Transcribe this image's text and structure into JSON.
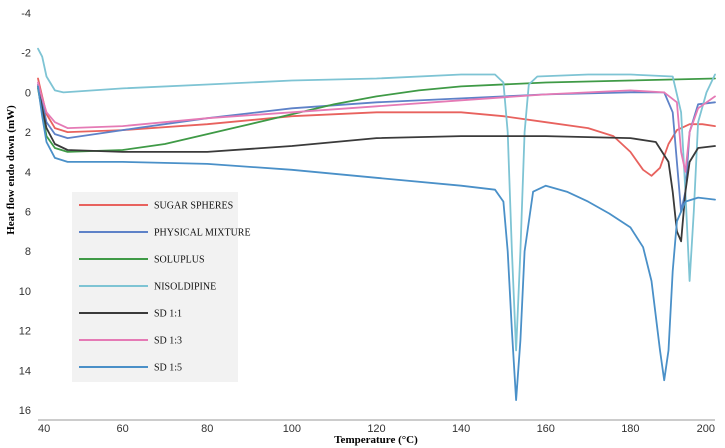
{
  "chart_data": {
    "type": "line",
    "xlabel": "Temperature (°C)",
    "ylabel": "Heat flow endo down (mW)",
    "xlim": [
      40,
      200
    ],
    "ylim": [
      -4,
      16
    ],
    "y_inverted": true,
    "xticks": [
      40,
      60,
      80,
      100,
      120,
      140,
      160,
      180,
      200
    ],
    "yticks": [
      -4,
      -2,
      0,
      2,
      4,
      6,
      8,
      10,
      12,
      14,
      16
    ],
    "grid": false,
    "legend_position": "bottom-left",
    "series": [
      {
        "name": "SUGAR SPHERES",
        "color": "#e8625e",
        "points": [
          [
            40,
            -0.7
          ],
          [
            41,
            0.2
          ],
          [
            42,
            1.1
          ],
          [
            44,
            1.8
          ],
          [
            47,
            2.0
          ],
          [
            60,
            1.9
          ],
          [
            80,
            1.6
          ],
          [
            100,
            1.2
          ],
          [
            120,
            1.0
          ],
          [
            140,
            1.0
          ],
          [
            150,
            1.2
          ],
          [
            160,
            1.5
          ],
          [
            170,
            1.8
          ],
          [
            176,
            2.2
          ],
          [
            180,
            3.0
          ],
          [
            183,
            3.9
          ],
          [
            185,
            4.2
          ],
          [
            187,
            3.8
          ],
          [
            189,
            2.6
          ],
          [
            191,
            1.9
          ],
          [
            194,
            1.6
          ],
          [
            197,
            1.6
          ],
          [
            200,
            1.7
          ]
        ]
      },
      {
        "name": "PHYSICAL MIXTURE",
        "color": "#5e82c8",
        "points": [
          [
            40,
            -0.4
          ],
          [
            41,
            0.5
          ],
          [
            42,
            1.5
          ],
          [
            44,
            2.1
          ],
          [
            47,
            2.3
          ],
          [
            60,
            1.9
          ],
          [
            80,
            1.3
          ],
          [
            100,
            0.8
          ],
          [
            120,
            0.5
          ],
          [
            140,
            0.3
          ],
          [
            160,
            0.1
          ],
          [
            180,
            0.0
          ],
          [
            188,
            0.0
          ],
          [
            190,
            1.0
          ],
          [
            191,
            3.5
          ],
          [
            192,
            6.0
          ],
          [
            193,
            5.0
          ],
          [
            194,
            2.0
          ],
          [
            196,
            0.6
          ],
          [
            200,
            0.5
          ]
        ]
      },
      {
        "name": "SOLUPLUS",
        "color": "#3f9a46",
        "points": [
          [
            40,
            -0.2
          ],
          [
            41,
            1.0
          ],
          [
            42,
            2.2
          ],
          [
            44,
            2.8
          ],
          [
            47,
            3.0
          ],
          [
            60,
            2.9
          ],
          [
            70,
            2.6
          ],
          [
            80,
            2.1
          ],
          [
            90,
            1.6
          ],
          [
            100,
            1.1
          ],
          [
            110,
            0.6
          ],
          [
            120,
            0.2
          ],
          [
            130,
            -0.1
          ],
          [
            140,
            -0.3
          ],
          [
            160,
            -0.5
          ],
          [
            180,
            -0.6
          ],
          [
            200,
            -0.7
          ]
        ]
      },
      {
        "name": "NISOLDIPINE",
        "color": "#7ec4d4",
        "points": [
          [
            40,
            -2.2
          ],
          [
            41,
            -1.8
          ],
          [
            42,
            -0.8
          ],
          [
            44,
            -0.1
          ],
          [
            46,
            0.0
          ],
          [
            60,
            -0.2
          ],
          [
            80,
            -0.4
          ],
          [
            100,
            -0.6
          ],
          [
            120,
            -0.7
          ],
          [
            140,
            -0.9
          ],
          [
            148,
            -0.9
          ],
          [
            150,
            -0.5
          ],
          [
            151,
            2.0
          ],
          [
            152,
            8.0
          ],
          [
            153,
            13.0
          ],
          [
            154,
            8.0
          ],
          [
            155,
            2.0
          ],
          [
            156,
            -0.4
          ],
          [
            158,
            -0.8
          ],
          [
            170,
            -0.9
          ],
          [
            180,
            -0.9
          ],
          [
            190,
            -0.8
          ],
          [
            192,
            1.0
          ],
          [
            193,
            5.0
          ],
          [
            194,
            9.5
          ],
          [
            195,
            6.0
          ],
          [
            196,
            1.5
          ],
          [
            198,
            0.0
          ],
          [
            200,
            -0.9
          ]
        ]
      },
      {
        "name": "SD 1:1",
        "color": "#3a3a3a",
        "points": [
          [
            40,
            -0.3
          ],
          [
            41,
            0.8
          ],
          [
            42,
            1.8
          ],
          [
            44,
            2.6
          ],
          [
            47,
            2.9
          ],
          [
            60,
            3.0
          ],
          [
            80,
            3.0
          ],
          [
            100,
            2.7
          ],
          [
            120,
            2.3
          ],
          [
            140,
            2.2
          ],
          [
            160,
            2.2
          ],
          [
            180,
            2.3
          ],
          [
            186,
            2.5
          ],
          [
            189,
            3.5
          ],
          [
            190,
            5.0
          ],
          [
            191,
            7.0
          ],
          [
            192,
            7.5
          ],
          [
            193,
            5.0
          ],
          [
            194,
            3.5
          ],
          [
            196,
            2.8
          ],
          [
            200,
            2.7
          ]
        ]
      },
      {
        "name": "SD 1:3",
        "color": "#e57ab5",
        "points": [
          [
            40,
            -0.5
          ],
          [
            41,
            0.3
          ],
          [
            42,
            1.0
          ],
          [
            44,
            1.5
          ],
          [
            47,
            1.8
          ],
          [
            60,
            1.7
          ],
          [
            80,
            1.3
          ],
          [
            100,
            1.0
          ],
          [
            120,
            0.7
          ],
          [
            140,
            0.4
          ],
          [
            160,
            0.1
          ],
          [
            180,
            -0.1
          ],
          [
            188,
            0.0
          ],
          [
            191,
            0.5
          ],
          [
            192,
            3.0
          ],
          [
            193,
            4.0
          ],
          [
            194,
            2.0
          ],
          [
            196,
            0.8
          ],
          [
            200,
            0.2
          ]
        ]
      },
      {
        "name": "SD 1:5",
        "color": "#4a90c8",
        "points": [
          [
            40,
            -0.3
          ],
          [
            41,
            1.2
          ],
          [
            42,
            2.5
          ],
          [
            44,
            3.3
          ],
          [
            47,
            3.5
          ],
          [
            60,
            3.5
          ],
          [
            80,
            3.6
          ],
          [
            100,
            3.9
          ],
          [
            120,
            4.3
          ],
          [
            140,
            4.7
          ],
          [
            148,
            4.9
          ],
          [
            150,
            5.5
          ],
          [
            151,
            8.0
          ],
          [
            152,
            12.0
          ],
          [
            153,
            15.5
          ],
          [
            154,
            12.5
          ],
          [
            155,
            8.0
          ],
          [
            157,
            5.0
          ],
          [
            160,
            4.7
          ],
          [
            165,
            5.0
          ],
          [
            170,
            5.5
          ],
          [
            175,
            6.1
          ],
          [
            180,
            6.8
          ],
          [
            183,
            7.8
          ],
          [
            185,
            9.5
          ],
          [
            187,
            13.0
          ],
          [
            188,
            14.5
          ],
          [
            189,
            13.0
          ],
          [
            190,
            9.0
          ],
          [
            191,
            6.5
          ],
          [
            193,
            5.5
          ],
          [
            196,
            5.3
          ],
          [
            200,
            5.4
          ]
        ]
      }
    ]
  }
}
